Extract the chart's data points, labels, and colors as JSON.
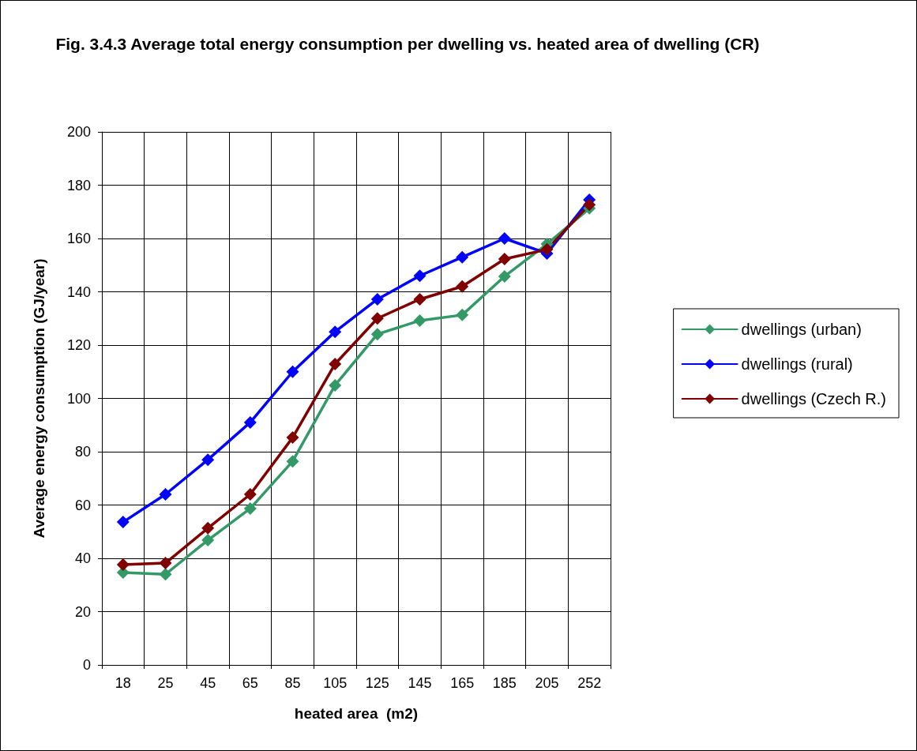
{
  "chart_data": {
    "type": "line",
    "title": "Fig. 3.4.3 Average total energy consumption per dwelling vs. heated area of dwelling (CR)",
    "xlabel": "heated area  (m2)",
    "ylabel": "Average energy consumption (GJ/year)",
    "categories": [
      "18",
      "25",
      "45",
      "65",
      "85",
      "105",
      "125",
      "145",
      "165",
      "185",
      "205",
      "252"
    ],
    "series": [
      {
        "name": "dwellings (urban)",
        "color": "#339966",
        "values": [
          34.7,
          34,
          46.8,
          58.7,
          76.4,
          104.9,
          124.1,
          129.2,
          131.3,
          145.8,
          157.9,
          171.3
        ]
      },
      {
        "name": "dwellings (rural)",
        "color": "#0000ff",
        "values": [
          53.6,
          64,
          77,
          91,
          110,
          125,
          137.2,
          146,
          153,
          160,
          154.4,
          174.5
        ]
      },
      {
        "name": "dwellings (Czech R.)",
        "color": "#800000",
        "values": [
          37.6,
          38.2,
          51.3,
          64,
          85.3,
          112.9,
          130,
          137.2,
          142,
          152.3,
          155.9,
          172.7
        ]
      }
    ],
    "ylim": [
      0,
      200
    ],
    "yticks": [
      0,
      20,
      40,
      60,
      80,
      100,
      120,
      140,
      160,
      180,
      200
    ],
    "grid": true,
    "legend": "right",
    "marker": "diamond",
    "line_style": "solid"
  }
}
